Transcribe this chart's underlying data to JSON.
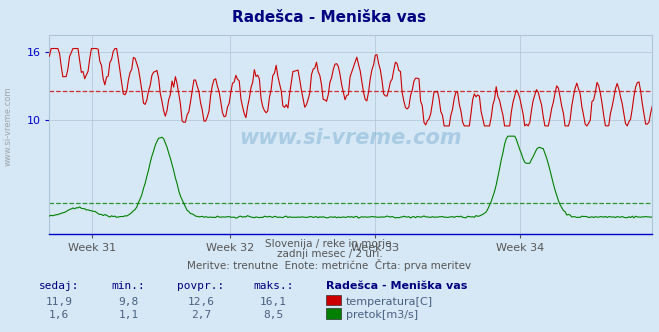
{
  "title": "Radešca - Meniška vas",
  "title_color": "#000080",
  "bg_color": "#d6e8f5",
  "plot_bg_color": "#d6e8f5",
  "grid_color": "#b0c4d8",
  "axis_color": "#0000cc",
  "week_labels": [
    "Week 31",
    "Week 32",
    "Week 33",
    "Week 34"
  ],
  "xlabel_color": "#555555",
  "temp_color": "#cc0000",
  "flow_color": "#008000",
  "temp_avg_line": 12.6,
  "flow_avg_line": 2.7,
  "temp_min": 9.8,
  "temp_max": 16.1,
  "temp_avg": 12.6,
  "temp_sedaj": 11.9,
  "flow_min": 1.1,
  "flow_max": 8.5,
  "flow_avg": 2.7,
  "flow_sedaj": 1.6,
  "n_points": 360,
  "ylim": [
    0,
    17.5
  ],
  "y_ticks": [
    10,
    16
  ],
  "subtitle1": "Slovenija / reke in morje.",
  "subtitle2": "zadnji mesec / 2 uri.",
  "subtitle3": "Meritve: trenutne  Enote: metrične  Črta: prva meritev",
  "legend_title": "Radešca - Meniška vas",
  "legend_temp": "temperatura[C]",
  "legend_flow": "pretok[m3/s]",
  "label_sedaj": "sedaj:",
  "label_min": "min.:",
  "label_povpr": "povpr.:",
  "label_maks": "maks.:",
  "watermark": "www.si-vreme.com"
}
